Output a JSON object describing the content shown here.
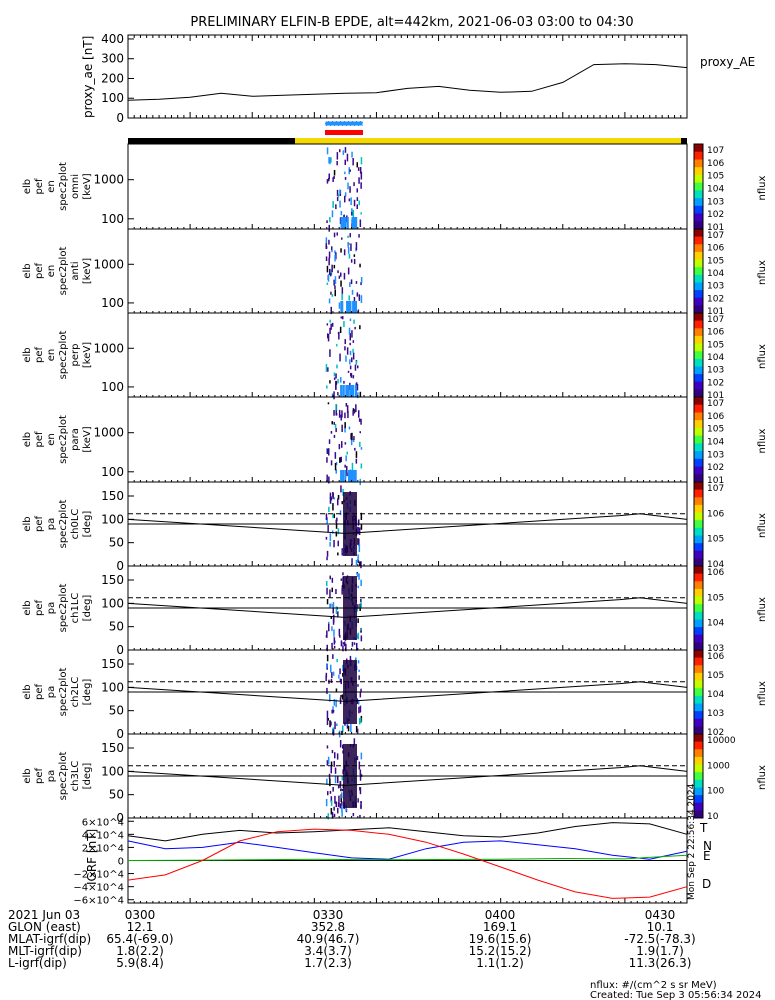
{
  "title": "PRELIMINARY ELFIN-B EPDE, alt=442km, 2021-06-03 03:00 to 04:30",
  "colors": {
    "black_bar": "#000000",
    "yellow_bar": "#f5d800",
    "blue_marker": "#1e90ff",
    "red_marker": "#ff0000",
    "grf_T": "#000000",
    "grf_N": "#0000ff",
    "grf_E": "#00b000",
    "grf_D": "#ff0000"
  },
  "footer": {
    "rows": [
      {
        "label": "2021 Jun 03",
        "values": [
          "0300",
          "0330",
          "0400",
          "0430"
        ]
      },
      {
        "label": "GLON (east)",
        "values": [
          "12.1",
          "352.8",
          "169.1",
          "10.1"
        ]
      },
      {
        "label": "MLAT-igrf(dip)",
        "values": [
          "65.4(-69.0)",
          "40.9(46.7)",
          "19.6(15.6)",
          "-72.5(-78.3)"
        ]
      },
      {
        "label": "MLT-igrf(dip)",
        "values": [
          "1.8(2.2)",
          "3.4(3.7)",
          "15.2(15.2)",
          "1.9(1.7)"
        ]
      },
      {
        "label": "L-igrf(dip)",
        "values": [
          "5.9(8.4)",
          "1.7(2.3)",
          "1.1(1.2)",
          "11.3(26.3)"
        ]
      }
    ],
    "units_note": "nflux: #/(cm^2 s sr MeV)",
    "created": "Created: Tue Sep  3 05:56:34 2024",
    "side_stamp": "Mon Sep  2 22:56:34 2024"
  },
  "chart_data": [
    {
      "type": "line",
      "ylabel": "proxy_ae [nT]",
      "legend": "proxy_AE",
      "yticks": [
        "400",
        "300",
        "200",
        "100",
        "0"
      ],
      "ylim": [
        0,
        420
      ],
      "x": [
        0,
        5,
        10,
        15,
        20,
        25,
        30,
        35,
        40,
        45,
        50,
        55,
        60,
        65,
        70,
        75,
        80,
        85,
        90
      ],
      "values": [
        90,
        95,
        105,
        125,
        110,
        115,
        120,
        125,
        128,
        150,
        160,
        140,
        130,
        135,
        180,
        270,
        275,
        270,
        255
      ],
      "xlim": [
        0,
        90
      ]
    },
    {
      "type": "heatmap",
      "ylabel": "elb pef en spec2plot omni [keV]",
      "yticks": [
        "1000",
        "100"
      ],
      "colorbar": {
        "label": "nflux",
        "ticks": [
          "10^7",
          "10^6",
          "10^5",
          "10^4",
          "10^3",
          "10^2",
          "10^1"
        ]
      }
    },
    {
      "type": "heatmap",
      "ylabel": "elb pef en spec2plot anti [keV]",
      "yticks": [
        "1000",
        "100"
      ],
      "colorbar": {
        "label": "nflux",
        "ticks": [
          "10^7",
          "10^6",
          "10^5",
          "10^4",
          "10^3",
          "10^2",
          "10^1"
        ]
      }
    },
    {
      "type": "heatmap",
      "ylabel": "elb pef en spec2plot perp [keV]",
      "yticks": [
        "1000",
        "100"
      ],
      "colorbar": {
        "label": "nflux",
        "ticks": [
          "10^7",
          "10^6",
          "10^5",
          "10^4",
          "10^3",
          "10^2",
          "10^1"
        ]
      }
    },
    {
      "type": "heatmap",
      "ylabel": "elb pef en spec2plot para [keV]",
      "yticks": [
        "1000",
        "100"
      ],
      "colorbar": {
        "label": "nflux",
        "ticks": [
          "10^7",
          "10^6",
          "10^5",
          "10^4",
          "10^3",
          "10^2",
          "10^1"
        ]
      }
    },
    {
      "type": "heatmap",
      "ylabel": "elb pef pa spec2plot ch0LC [deg]",
      "yticks": [
        "150",
        "100",
        "50",
        "0"
      ],
      "colorbar": {
        "label": "nflux",
        "ticks": [
          "10^7",
          "10^6",
          "10^5",
          "10^4"
        ]
      }
    },
    {
      "type": "heatmap",
      "ylabel": "elb pef pa spec2plot ch1LC [deg]",
      "yticks": [
        "150",
        "100",
        "50",
        "0"
      ],
      "colorbar": {
        "label": "nflux",
        "ticks": [
          "10^6",
          "10^5",
          "10^4",
          "10^3"
        ]
      }
    },
    {
      "type": "heatmap",
      "ylabel": "elb pef pa spec2plot ch2LC [deg]",
      "yticks": [
        "150",
        "100",
        "50",
        "0"
      ],
      "colorbar": {
        "label": "nflux",
        "ticks": [
          "10^6",
          "10^5",
          "10^4",
          "10^3",
          "10^2"
        ]
      }
    },
    {
      "type": "heatmap",
      "ylabel": "elb pef pa spec2plot ch3LC [deg]",
      "yticks": [
        "150",
        "100",
        "50",
        "0"
      ],
      "colorbar": {
        "label": "nflux",
        "ticks": [
          "10000",
          "1000",
          "100",
          "10"
        ]
      }
    },
    {
      "type": "line",
      "ylabel": "IGRF [nT]",
      "yticks": [
        "6×10^4",
        "4×10^4",
        "2×10^4",
        "0",
        "−2×10^4",
        "−4×10^4",
        "−6×10^4"
      ],
      "ylim": [
        -65000,
        65000
      ],
      "xlim": [
        0,
        90
      ],
      "series": [
        {
          "name": "T",
          "x": [
            0,
            6,
            12,
            18,
            24,
            30,
            36,
            42,
            48,
            54,
            60,
            66,
            72,
            78,
            84,
            90
          ],
          "values": [
            38000,
            30000,
            40000,
            46000,
            42000,
            44000,
            47000,
            50000,
            44000,
            38000,
            36000,
            42000,
            52000,
            58000,
            56000,
            40000
          ]
        },
        {
          "name": "N",
          "x": [
            0,
            6,
            12,
            18,
            24,
            30,
            36,
            42,
            48,
            54,
            60,
            66,
            72,
            78,
            84,
            90
          ],
          "values": [
            30000,
            18000,
            20000,
            28000,
            20000,
            12000,
            4000,
            2000,
            18000,
            28000,
            30000,
            24000,
            18000,
            8000,
            2000,
            14000
          ]
        },
        {
          "name": "E",
          "x": [
            0,
            10,
            20,
            30,
            40,
            50,
            60,
            70,
            80,
            86,
            90
          ],
          "values": [
            0,
            500,
            1000,
            2000,
            1000,
            1500,
            2000,
            3000,
            2500,
            6000,
            8000
          ]
        },
        {
          "name": "D",
          "x": [
            0,
            6,
            12,
            18,
            24,
            30,
            36,
            42,
            48,
            54,
            60,
            66,
            72,
            78,
            84,
            90
          ],
          "values": [
            -30000,
            -22000,
            0,
            30000,
            44000,
            48000,
            46000,
            40000,
            28000,
            10000,
            -10000,
            -30000,
            -48000,
            -58000,
            -56000,
            -40000
          ]
        }
      ]
    }
  ]
}
